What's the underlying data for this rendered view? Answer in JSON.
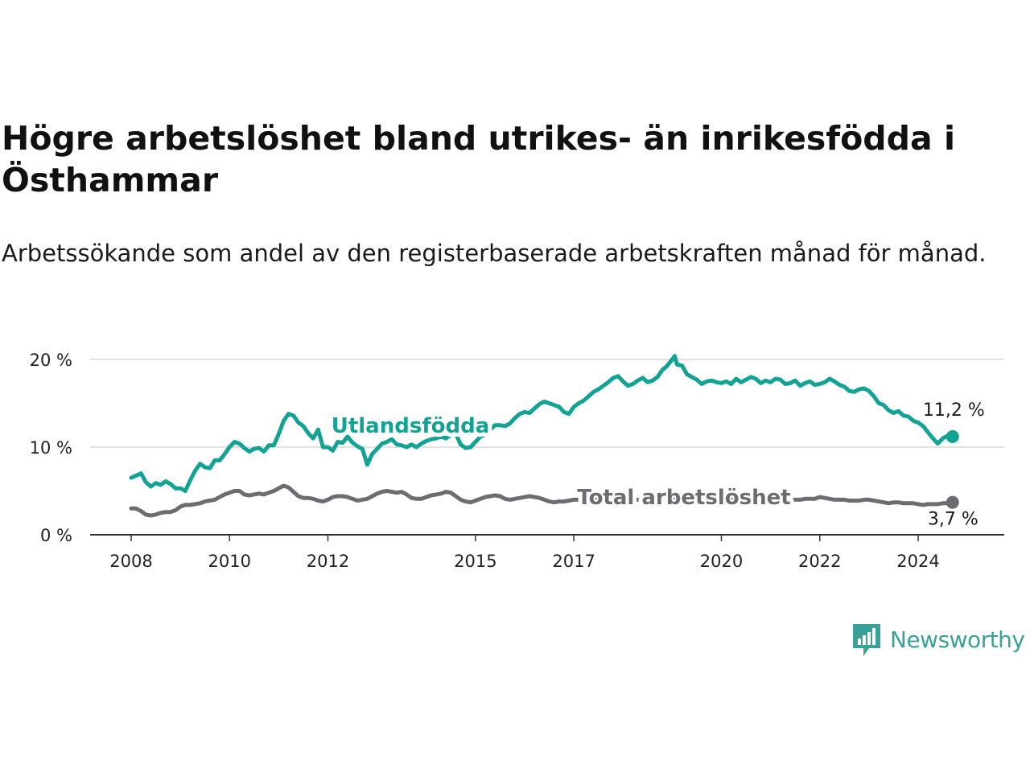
{
  "header": {
    "title": "Högre arbetslöshet bland utrikes- än inrikesfödda i Östhammar",
    "subtitle": "Arbetssökande som andel av den registerbaserade arbetskraften månad för månad."
  },
  "brand": {
    "name": "Newsworthy",
    "icon": "newsworthy-logo-icon",
    "color": "#3aa198"
  },
  "chart_data": {
    "type": "line",
    "xlabel": "",
    "ylabel": "",
    "xlim": [
      2008,
      2024.9
    ],
    "ylim": [
      0,
      20
    ],
    "y_ticks": [
      0,
      10,
      20
    ],
    "y_tick_labels": [
      "0 %",
      "10 %",
      "20 %"
    ],
    "x_ticks": [
      2008,
      2010,
      2012,
      2015,
      2017,
      2020,
      2022,
      2024
    ],
    "x_tick_labels": [
      "2008",
      "2010",
      "2012",
      "2015",
      "2017",
      "2020",
      "2022",
      "2024"
    ],
    "grid": true,
    "series": [
      {
        "name": "Utlandsfödda",
        "color": "#13a394",
        "end_label": "11,2 %",
        "points": [
          [
            2008.0,
            6.5
          ],
          [
            2008.2,
            7.0
          ],
          [
            2008.3,
            6.0
          ],
          [
            2008.4,
            5.5
          ],
          [
            2008.5,
            5.9
          ],
          [
            2008.6,
            5.7
          ],
          [
            2008.7,
            6.1
          ],
          [
            2008.8,
            5.8
          ],
          [
            2008.9,
            5.3
          ],
          [
            2009.0,
            5.3
          ],
          [
            2009.1,
            5.0
          ],
          [
            2009.2,
            6.2
          ],
          [
            2009.3,
            7.3
          ],
          [
            2009.4,
            8.1
          ],
          [
            2009.5,
            7.7
          ],
          [
            2009.6,
            7.6
          ],
          [
            2009.7,
            8.5
          ],
          [
            2009.8,
            8.5
          ],
          [
            2009.9,
            9.2
          ],
          [
            2010.0,
            10.0
          ],
          [
            2010.1,
            10.6
          ],
          [
            2010.2,
            10.4
          ],
          [
            2010.3,
            9.9
          ],
          [
            2010.4,
            9.5
          ],
          [
            2010.5,
            9.8
          ],
          [
            2010.6,
            9.9
          ],
          [
            2010.7,
            9.5
          ],
          [
            2010.8,
            10.2
          ],
          [
            2010.9,
            10.2
          ],
          [
            2011.0,
            11.5
          ],
          [
            2011.1,
            13.0
          ],
          [
            2011.2,
            13.8
          ],
          [
            2011.3,
            13.6
          ],
          [
            2011.4,
            12.8
          ],
          [
            2011.5,
            12.4
          ],
          [
            2011.6,
            11.6
          ],
          [
            2011.7,
            11.0
          ],
          [
            2011.8,
            12.0
          ],
          [
            2011.9,
            10.0
          ],
          [
            2012.0,
            10.0
          ],
          [
            2012.1,
            9.6
          ],
          [
            2012.2,
            10.6
          ],
          [
            2012.3,
            10.5
          ],
          [
            2012.4,
            11.2
          ],
          [
            2012.5,
            10.5
          ],
          [
            2012.6,
            10.1
          ],
          [
            2012.7,
            9.8
          ],
          [
            2012.8,
            8.0
          ],
          [
            2012.9,
            9.2
          ],
          [
            2013.0,
            9.8
          ],
          [
            2013.1,
            10.4
          ],
          [
            2013.2,
            10.6
          ],
          [
            2013.3,
            10.9
          ],
          [
            2013.4,
            10.3
          ],
          [
            2013.5,
            10.2
          ],
          [
            2013.6,
            10.0
          ],
          [
            2013.7,
            10.3
          ],
          [
            2013.8,
            10.0
          ],
          [
            2013.9,
            10.4
          ],
          [
            2014.0,
            10.7
          ],
          [
            2014.1,
            10.9
          ],
          [
            2014.2,
            11.0
          ],
          [
            2014.3,
            11.2
          ],
          [
            2014.4,
            11.0
          ],
          [
            2014.5,
            11.4
          ],
          [
            2014.6,
            11.5
          ],
          [
            2014.7,
            10.3
          ],
          [
            2014.8,
            9.9
          ],
          [
            2014.9,
            10.0
          ],
          [
            2015.0,
            10.6
          ],
          [
            2015.1,
            11.2
          ],
          [
            2015.2,
            11.4
          ],
          [
            2015.3,
            12.0
          ],
          [
            2015.4,
            12.5
          ],
          [
            2015.5,
            12.5
          ],
          [
            2015.6,
            12.4
          ],
          [
            2015.7,
            12.7
          ],
          [
            2015.8,
            13.3
          ],
          [
            2015.9,
            13.8
          ],
          [
            2016.0,
            14.0
          ],
          [
            2016.1,
            13.9
          ],
          [
            2016.2,
            14.4
          ],
          [
            2016.3,
            14.9
          ],
          [
            2016.4,
            15.2
          ],
          [
            2016.5,
            15.0
          ],
          [
            2016.6,
            14.8
          ],
          [
            2016.7,
            14.6
          ],
          [
            2016.8,
            14.0
          ],
          [
            2016.9,
            13.8
          ],
          [
            2017.0,
            14.6
          ],
          [
            2017.1,
            15.0
          ],
          [
            2017.2,
            15.3
          ],
          [
            2017.3,
            15.8
          ],
          [
            2017.4,
            16.3
          ],
          [
            2017.5,
            16.6
          ],
          [
            2017.6,
            17.0
          ],
          [
            2017.7,
            17.4
          ],
          [
            2017.8,
            17.9
          ],
          [
            2017.9,
            18.1
          ],
          [
            2018.0,
            17.5
          ],
          [
            2018.1,
            17.0
          ],
          [
            2018.2,
            17.2
          ],
          [
            2018.3,
            17.6
          ],
          [
            2018.4,
            17.9
          ],
          [
            2018.5,
            17.4
          ],
          [
            2018.6,
            17.6
          ],
          [
            2018.7,
            18.0
          ],
          [
            2018.8,
            18.8
          ],
          [
            2018.9,
            19.3
          ],
          [
            2019.0,
            20.0
          ],
          [
            2019.05,
            20.4
          ],
          [
            2019.1,
            19.4
          ],
          [
            2019.2,
            19.3
          ],
          [
            2019.3,
            18.3
          ],
          [
            2019.4,
            18.0
          ],
          [
            2019.5,
            17.7
          ],
          [
            2019.6,
            17.2
          ],
          [
            2019.7,
            17.5
          ],
          [
            2019.8,
            17.6
          ],
          [
            2019.9,
            17.4
          ],
          [
            2020.0,
            17.3
          ],
          [
            2020.1,
            17.5
          ],
          [
            2020.2,
            17.2
          ],
          [
            2020.3,
            17.8
          ],
          [
            2020.4,
            17.4
          ],
          [
            2020.5,
            17.7
          ],
          [
            2020.6,
            18.0
          ],
          [
            2020.7,
            17.8
          ],
          [
            2020.8,
            17.3
          ],
          [
            2020.9,
            17.6
          ],
          [
            2021.0,
            17.4
          ],
          [
            2021.1,
            17.8
          ],
          [
            2021.2,
            17.7
          ],
          [
            2021.3,
            17.2
          ],
          [
            2021.4,
            17.3
          ],
          [
            2021.5,
            17.6
          ],
          [
            2021.6,
            17.0
          ],
          [
            2021.7,
            17.3
          ],
          [
            2021.8,
            17.5
          ],
          [
            2021.9,
            17.1
          ],
          [
            2022.0,
            17.2
          ],
          [
            2022.1,
            17.4
          ],
          [
            2022.2,
            17.8
          ],
          [
            2022.3,
            17.5
          ],
          [
            2022.4,
            17.1
          ],
          [
            2022.5,
            16.9
          ],
          [
            2022.6,
            16.4
          ],
          [
            2022.7,
            16.3
          ],
          [
            2022.8,
            16.6
          ],
          [
            2022.9,
            16.7
          ],
          [
            2023.0,
            16.4
          ],
          [
            2023.1,
            15.8
          ],
          [
            2023.2,
            15.0
          ],
          [
            2023.3,
            14.8
          ],
          [
            2023.4,
            14.2
          ],
          [
            2023.5,
            13.9
          ],
          [
            2023.6,
            14.1
          ],
          [
            2023.7,
            13.6
          ],
          [
            2023.8,
            13.5
          ],
          [
            2023.9,
            13.0
          ],
          [
            2024.0,
            12.8
          ],
          [
            2024.1,
            12.4
          ],
          [
            2024.2,
            11.7
          ],
          [
            2024.3,
            11.0
          ],
          [
            2024.4,
            10.4
          ],
          [
            2024.5,
            11.0
          ],
          [
            2024.6,
            11.3
          ],
          [
            2024.7,
            11.2
          ]
        ]
      },
      {
        "name": "Total arbetslöshet",
        "color": "#6d6c72",
        "end_label": "3,7 %",
        "points": [
          [
            2008.0,
            3.0
          ],
          [
            2008.1,
            3.0
          ],
          [
            2008.2,
            2.7
          ],
          [
            2008.3,
            2.3
          ],
          [
            2008.4,
            2.2
          ],
          [
            2008.5,
            2.3
          ],
          [
            2008.6,
            2.5
          ],
          [
            2008.7,
            2.6
          ],
          [
            2008.8,
            2.6
          ],
          [
            2008.9,
            2.8
          ],
          [
            2009.0,
            3.2
          ],
          [
            2009.1,
            3.4
          ],
          [
            2009.2,
            3.4
          ],
          [
            2009.3,
            3.5
          ],
          [
            2009.4,
            3.6
          ],
          [
            2009.5,
            3.8
          ],
          [
            2009.6,
            3.9
          ],
          [
            2009.7,
            4.0
          ],
          [
            2009.8,
            4.3
          ],
          [
            2009.9,
            4.6
          ],
          [
            2010.0,
            4.8
          ],
          [
            2010.1,
            5.0
          ],
          [
            2010.2,
            5.0
          ],
          [
            2010.3,
            4.6
          ],
          [
            2010.4,
            4.5
          ],
          [
            2010.5,
            4.6
          ],
          [
            2010.6,
            4.7
          ],
          [
            2010.7,
            4.6
          ],
          [
            2010.8,
            4.8
          ],
          [
            2010.9,
            5.0
          ],
          [
            2011.0,
            5.3
          ],
          [
            2011.1,
            5.6
          ],
          [
            2011.2,
            5.4
          ],
          [
            2011.3,
            4.9
          ],
          [
            2011.4,
            4.4
          ],
          [
            2011.5,
            4.2
          ],
          [
            2011.6,
            4.2
          ],
          [
            2011.7,
            4.1
          ],
          [
            2011.8,
            3.9
          ],
          [
            2011.9,
            3.8
          ],
          [
            2012.0,
            4.0
          ],
          [
            2012.1,
            4.3
          ],
          [
            2012.2,
            4.4
          ],
          [
            2012.3,
            4.4
          ],
          [
            2012.4,
            4.3
          ],
          [
            2012.5,
            4.1
          ],
          [
            2012.6,
            3.9
          ],
          [
            2012.7,
            4.0
          ],
          [
            2012.8,
            4.1
          ],
          [
            2012.9,
            4.4
          ],
          [
            2013.0,
            4.7
          ],
          [
            2013.1,
            4.9
          ],
          [
            2013.2,
            5.0
          ],
          [
            2013.3,
            4.9
          ],
          [
            2013.4,
            4.8
          ],
          [
            2013.5,
            4.9
          ],
          [
            2013.6,
            4.6
          ],
          [
            2013.7,
            4.2
          ],
          [
            2013.8,
            4.1
          ],
          [
            2013.9,
            4.1
          ],
          [
            2014.0,
            4.3
          ],
          [
            2014.1,
            4.5
          ],
          [
            2014.2,
            4.6
          ],
          [
            2014.3,
            4.7
          ],
          [
            2014.4,
            4.9
          ],
          [
            2014.5,
            4.8
          ],
          [
            2014.6,
            4.4
          ],
          [
            2014.7,
            4.0
          ],
          [
            2014.8,
            3.8
          ],
          [
            2014.9,
            3.7
          ],
          [
            2015.0,
            3.9
          ],
          [
            2015.1,
            4.1
          ],
          [
            2015.2,
            4.3
          ],
          [
            2015.3,
            4.4
          ],
          [
            2015.4,
            4.5
          ],
          [
            2015.5,
            4.4
          ],
          [
            2015.6,
            4.1
          ],
          [
            2015.7,
            4.0
          ],
          [
            2015.8,
            4.1
          ],
          [
            2015.9,
            4.2
          ],
          [
            2016.0,
            4.3
          ],
          [
            2016.1,
            4.4
          ],
          [
            2016.2,
            4.3
          ],
          [
            2016.3,
            4.2
          ],
          [
            2016.4,
            4.0
          ],
          [
            2016.5,
            3.8
          ],
          [
            2016.6,
            3.7
          ],
          [
            2016.7,
            3.8
          ],
          [
            2016.8,
            3.8
          ],
          [
            2016.9,
            3.9
          ],
          [
            2017.0,
            4.0
          ],
          [
            2021.5,
            4.0
          ],
          [
            2021.6,
            4.0
          ],
          [
            2021.7,
            4.1
          ],
          [
            2021.8,
            4.1
          ],
          [
            2021.9,
            4.1
          ],
          [
            2022.0,
            4.3
          ],
          [
            2022.1,
            4.2
          ],
          [
            2022.2,
            4.1
          ],
          [
            2022.3,
            4.0
          ],
          [
            2022.4,
            4.0
          ],
          [
            2022.5,
            4.0
          ],
          [
            2022.6,
            3.9
          ],
          [
            2022.7,
            3.9
          ],
          [
            2022.8,
            3.9
          ],
          [
            2022.9,
            4.0
          ],
          [
            2023.0,
            4.0
          ],
          [
            2023.1,
            3.9
          ],
          [
            2023.2,
            3.8
          ],
          [
            2023.3,
            3.7
          ],
          [
            2023.4,
            3.6
          ],
          [
            2023.5,
            3.7
          ],
          [
            2023.6,
            3.7
          ],
          [
            2023.7,
            3.6
          ],
          [
            2023.8,
            3.6
          ],
          [
            2023.9,
            3.6
          ],
          [
            2024.0,
            3.5
          ],
          [
            2024.1,
            3.4
          ],
          [
            2024.2,
            3.5
          ],
          [
            2024.3,
            3.5
          ],
          [
            2024.4,
            3.5
          ],
          [
            2024.5,
            3.6
          ],
          [
            2024.6,
            3.6
          ],
          [
            2024.7,
            3.7
          ]
        ]
      }
    ]
  }
}
